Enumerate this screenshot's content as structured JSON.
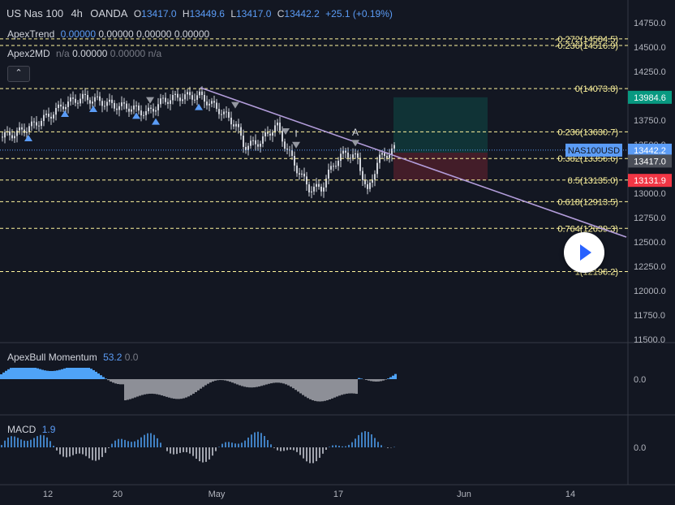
{
  "header": {
    "symbol": "US Nas 100",
    "interval": "4h",
    "exchange": "OANDA",
    "o_label": "O",
    "o": "13417.0",
    "h_label": "H",
    "h": "13449.6",
    "l_label": "L",
    "l": "13417.0",
    "c_label": "C",
    "c": "13442.2",
    "change": "+25.1 (+0.19%)"
  },
  "indicators": {
    "apextrend": {
      "name": "ApexTrend",
      "v1": "0.00000",
      "v2": "0.00000",
      "v3": "0.00000",
      "v4": "0.00000"
    },
    "apex2md": {
      "name": "Apex2MD",
      "v1": "n/a",
      "v2": "0.00000",
      "v3": "0.00000",
      "v4": "n/a"
    },
    "momentum": {
      "name": "ApexBull Momentum",
      "v1": "53.2",
      "v2": "0.0",
      "axis": "0.0"
    },
    "macd": {
      "name": "MACD",
      "v1": "1.9",
      "axis": "0.0"
    }
  },
  "collapse_glyph": "⌃",
  "price_axis": [
    "14750.0",
    "14500.0",
    "14250.0",
    "14000.0",
    "13750.0",
    "13500.0",
    "13000.0",
    "12750.0",
    "12500.0",
    "12250.0",
    "12000.0",
    "11750.0",
    "11500.0"
  ],
  "fib_levels": [
    {
      "label": "-0.272(14584.5)",
      "value": 14584.5
    },
    {
      "label": "-0.236(14516.9)",
      "value": 14516.9
    },
    {
      "label": "0(14073.8)",
      "value": 14073.8
    },
    {
      "label": "0.236(13630.7)",
      "value": 13630.7
    },
    {
      "label": "0.382(13356.6)",
      "value": 13356.6
    },
    {
      "label": "0.5(13135.0)",
      "value": 13135.0
    },
    {
      "label": "0.618(12913.5)",
      "value": 12913.5
    },
    {
      "label": "0.764(12639.3)",
      "value": 12639.3
    },
    {
      "label": "1(12196.2)",
      "value": 12196.2
    }
  ],
  "price_tags": {
    "target": {
      "label": "13984.6",
      "color": "#089981"
    },
    "symbol_name": "NAS100USD",
    "last": {
      "label": "13442.2",
      "color": "#5b9cf6"
    },
    "entry": {
      "label": "13417.0",
      "color": "#4a4e58"
    },
    "stop": {
      "label": "13131.9",
      "color": "#f23645"
    }
  },
  "time_axis": [
    "12",
    "20",
    "May",
    "17",
    "Jun",
    "14"
  ],
  "wave_labels": [
    "I",
    "A"
  ],
  "colors": {
    "background": "#131722",
    "trendline": "#b39ddb",
    "fib": "#fff59d",
    "up_hist": "#4fa3f7",
    "down_hist": "#8d8f97"
  }
}
